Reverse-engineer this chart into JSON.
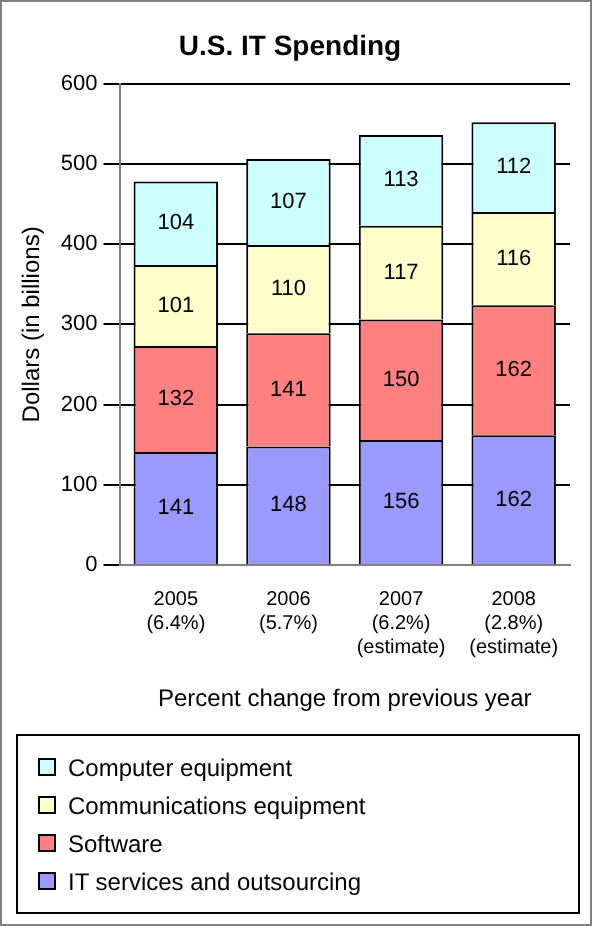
{
  "chart_data": {
    "type": "bar",
    "title": "U.S. IT Spending",
    "xlabel": "Percent change from previous year",
    "ylabel": "Dollars (in billions)",
    "categories": [
      "2005\n(6.4%)",
      "2006\n(5.7%)",
      "2007\n(6.2%)\n(estimate)",
      "2008\n(2.8%)\n(estimate)"
    ],
    "stacked": true,
    "ylim": [
      0,
      600
    ],
    "yticks": [
      0,
      100,
      200,
      300,
      400,
      500,
      600
    ],
    "grid": "y",
    "legend": "bottom",
    "data_labels": true,
    "series": [
      {
        "name": "IT services and outsourcing",
        "color": "#9999ff",
        "values": [
          141,
          148,
          156,
          162
        ]
      },
      {
        "name": "Software",
        "color": "#ff8080",
        "values": [
          132,
          141,
          150,
          162
        ]
      },
      {
        "name": "Communications equipment",
        "color": "#ffffcc",
        "values": [
          101,
          110,
          117,
          116
        ]
      },
      {
        "name": "Computer equipment",
        "color": "#ccffff",
        "values": [
          104,
          107,
          113,
          112
        ]
      }
    ]
  }
}
